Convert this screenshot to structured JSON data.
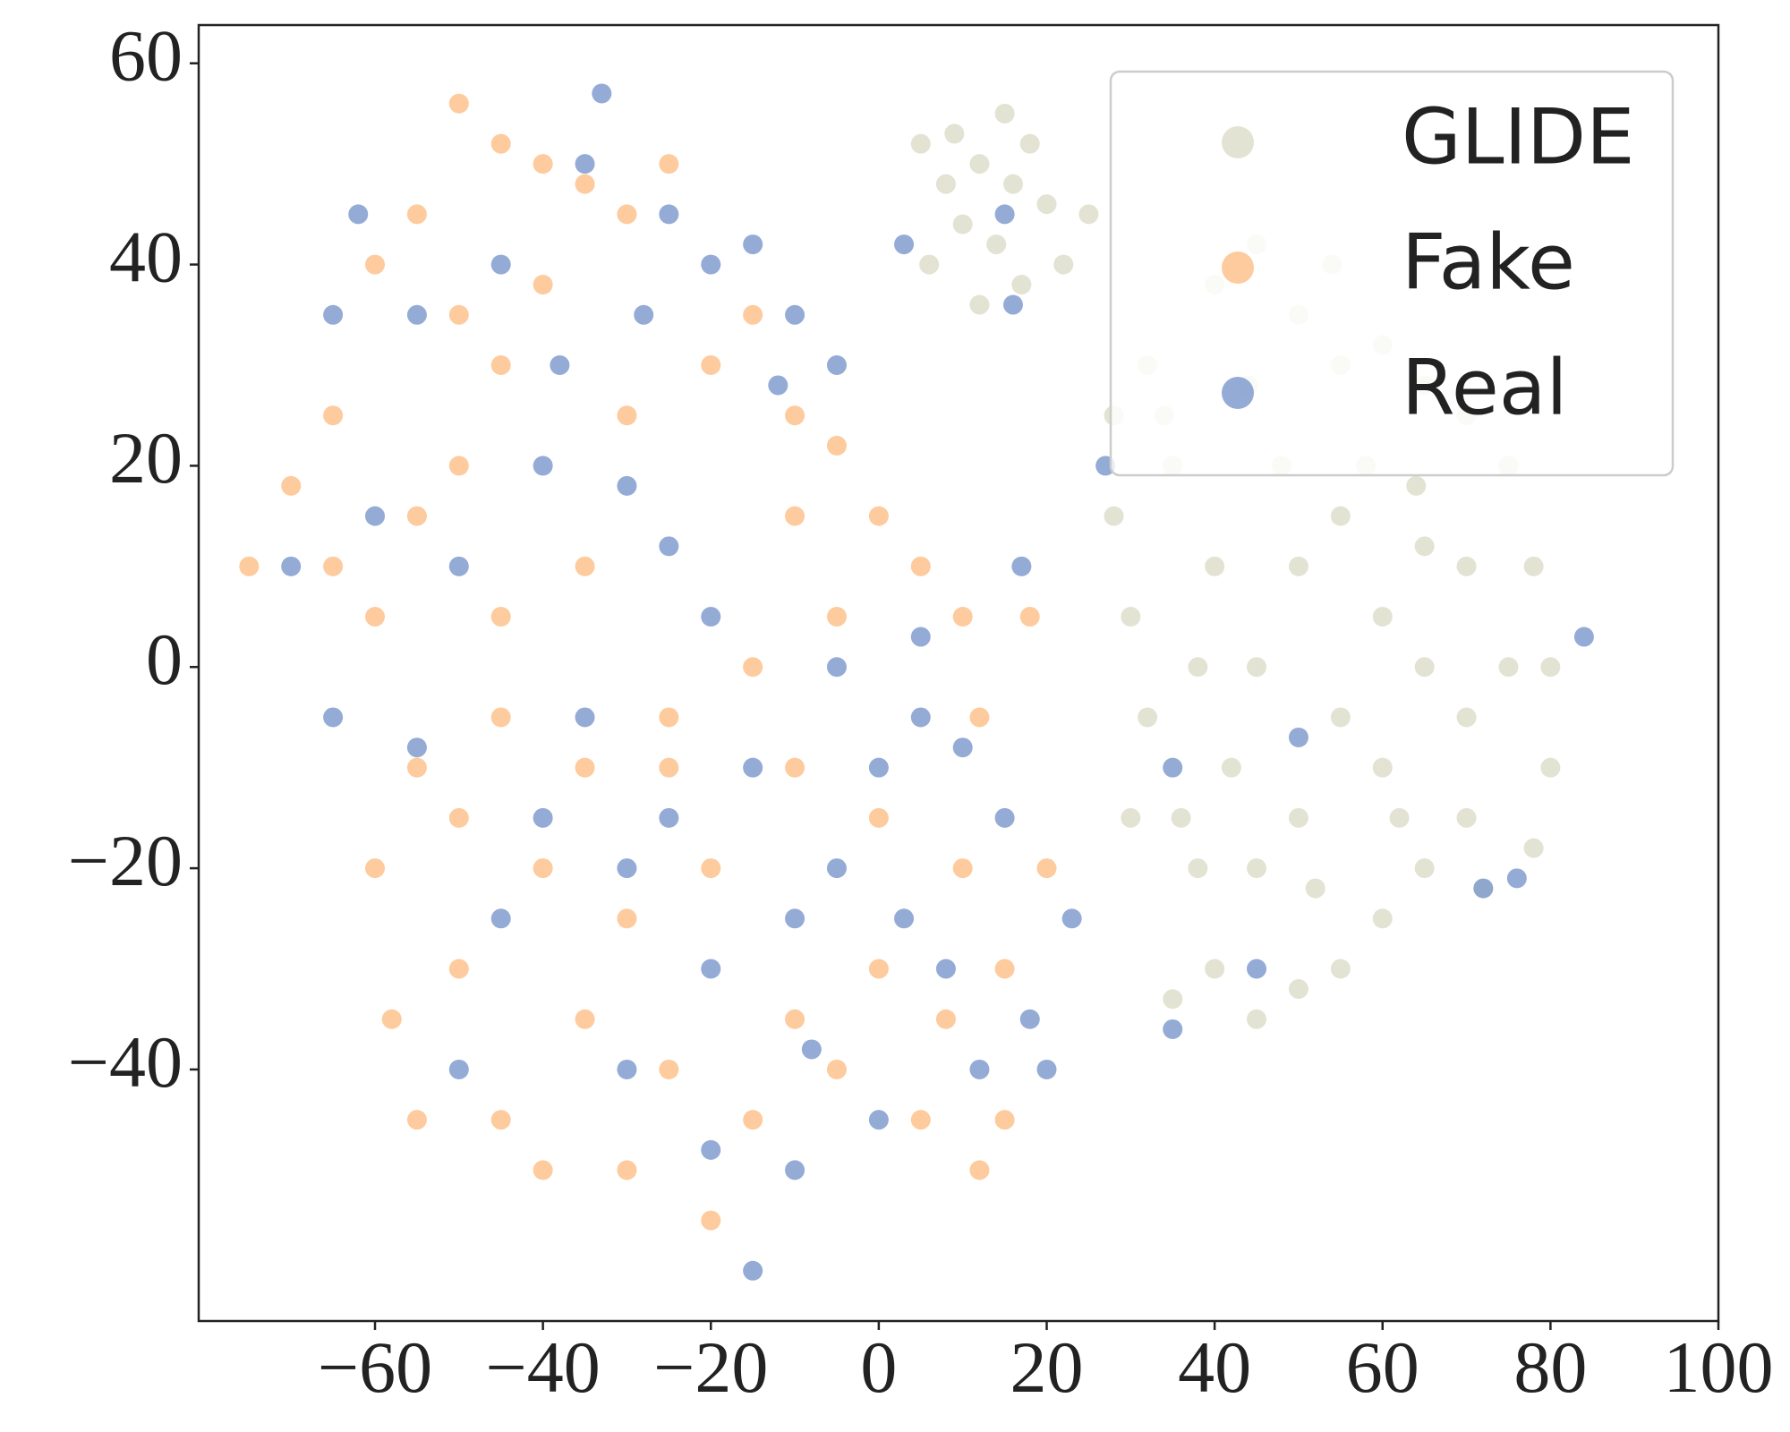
{
  "chart_data": {
    "type": "scatter",
    "xlim": [
      -81,
      100
    ],
    "ylim": [
      -65,
      63.8
    ],
    "xticks": [
      {
        "value": -60,
        "label": "−60"
      },
      {
        "value": -40,
        "label": "−40"
      },
      {
        "value": -20,
        "label": "−20"
      },
      0,
      20,
      40,
      60,
      80,
      100
    ],
    "yticks": [
      {
        "value": -40,
        "label": "−40"
      },
      {
        "value": -20,
        "label": "−20"
      },
      0,
      20,
      40,
      60
    ],
    "legend": "upper right",
    "series": [
      {
        "name": "GLIDE",
        "color": "#dcdcc8",
        "x": [
          5,
          8,
          12,
          15,
          18,
          10,
          14,
          20,
          22,
          6,
          17,
          12,
          25,
          16,
          9,
          40,
          45,
          50,
          55,
          60,
          65,
          70,
          75,
          78,
          80,
          80,
          78,
          70,
          65,
          60,
          55,
          50,
          45,
          40,
          35,
          38,
          36,
          32,
          30,
          28,
          28,
          32,
          35,
          40,
          45,
          50,
          55,
          60,
          65,
          70,
          60,
          50,
          45,
          55,
          65,
          70,
          42,
          48,
          58,
          38,
          52,
          62,
          72,
          75,
          30,
          34,
          44,
          54,
          64
        ],
        "y": [
          52,
          48,
          50,
          55,
          52,
          44,
          42,
          46,
          40,
          40,
          38,
          36,
          45,
          48,
          53,
          38,
          42,
          35,
          30,
          32,
          28,
          25,
          20,
          10,
          0,
          -10,
          -18,
          -15,
          -20,
          -25,
          -30,
          -32,
          -35,
          -30,
          -33,
          -20,
          -15,
          -5,
          5,
          15,
          25,
          30,
          20,
          10,
          0,
          10,
          15,
          5,
          0,
          -5,
          -10,
          -15,
          -20,
          -5,
          12,
          10,
          -10,
          20,
          20,
          0,
          -22,
          -15,
          -22,
          0,
          -15,
          25,
          28,
          40,
          18
        ]
      },
      {
        "name": "Fake",
        "color": "#fdbe85",
        "x": [
          -50,
          -45,
          -40,
          -35,
          -30,
          -25,
          -55,
          -60,
          -50,
          -45,
          -40,
          -65,
          -70,
          -75,
          -65,
          -55,
          -50,
          -60,
          -45,
          -35,
          -30,
          -20,
          -15,
          -10,
          -5,
          -10,
          0,
          5,
          10,
          -5,
          -15,
          -25,
          -35,
          -45,
          -55,
          -60,
          -58,
          -50,
          -45,
          -40,
          -30,
          -20,
          -15,
          -10,
          -5,
          0,
          -20,
          -30,
          -40,
          -50,
          10,
          15,
          20,
          12,
          15,
          -25,
          -10,
          0,
          5,
          -35,
          -55,
          -25,
          12,
          18,
          8
        ],
        "y": [
          56,
          52,
          50,
          48,
          45,
          50,
          45,
          40,
          35,
          30,
          38,
          25,
          18,
          10,
          10,
          15,
          20,
          5,
          5,
          10,
          25,
          30,
          35,
          25,
          22,
          15,
          15,
          10,
          5,
          5,
          0,
          -5,
          -10,
          -5,
          -10,
          -20,
          -35,
          -30,
          -45,
          -50,
          -50,
          -55,
          -45,
          -35,
          -40,
          -30,
          -20,
          -25,
          -20,
          -15,
          -20,
          -30,
          -20,
          -50,
          -45,
          -10,
          -10,
          -15,
          -45,
          -35,
          -45,
          -40,
          -5,
          5,
          -35
        ]
      },
      {
        "name": "Real",
        "color": "#7996cc",
        "x": [
          -33,
          -35,
          -25,
          -20,
          -15,
          -10,
          -5,
          -12,
          -28,
          -38,
          -45,
          -55,
          -62,
          -65,
          -40,
          -30,
          -25,
          -20,
          -50,
          -60,
          -70,
          -65,
          -55,
          -40,
          -30,
          -20,
          -10,
          -5,
          0,
          5,
          10,
          15,
          17,
          12,
          8,
          0,
          -10,
          -20,
          -30,
          -50,
          -45,
          -35,
          -25,
          -15,
          -5,
          5,
          3,
          18,
          20,
          23,
          -15,
          3,
          15,
          16,
          35,
          50,
          72,
          76,
          84,
          45,
          27,
          35,
          -8
        ],
        "y": [
          57,
          50,
          45,
          40,
          42,
          35,
          30,
          28,
          35,
          30,
          40,
          35,
          45,
          35,
          20,
          18,
          12,
          5,
          10,
          15,
          10,
          -5,
          -8,
          -15,
          -20,
          -30,
          -25,
          -20,
          -10,
          -5,
          -8,
          -15,
          10,
          -40,
          -30,
          -45,
          -50,
          -48,
          -40,
          -40,
          -25,
          -5,
          -15,
          -10,
          0,
          3,
          -25,
          -35,
          -40,
          -25,
          -60,
          42,
          45,
          36,
          -10,
          -7,
          -22,
          -21,
          3,
          -30,
          20,
          -36,
          -38
        ]
      }
    ]
  }
}
